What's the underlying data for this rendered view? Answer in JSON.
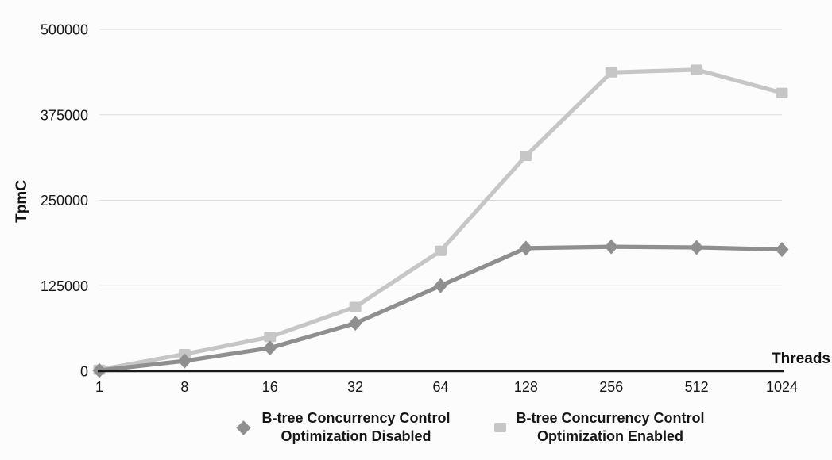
{
  "chart_data": {
    "type": "line",
    "title": "",
    "xlabel": "Threads",
    "ylabel": "TpmC",
    "categories": [
      "1",
      "8",
      "16",
      "32",
      "64",
      "128",
      "256",
      "512",
      "1024"
    ],
    "y_ticks": [
      0,
      125000,
      250000,
      375000,
      500000
    ],
    "ylim": [
      0,
      500000
    ],
    "grid": true,
    "legend_position": "bottom-center",
    "series": [
      {
        "name": "B-tree Concurrency Control Optimization Disabled",
        "name_lines": [
          "B-tree Concurrency Control",
          "Optimization Disabled"
        ],
        "marker": "diamond",
        "color": "#8f8f8f",
        "values": [
          1000,
          15000,
          34000,
          70000,
          125000,
          180000,
          182000,
          181000,
          178000
        ]
      },
      {
        "name": "B-tree Concurrency Control Optimization Enabled",
        "name_lines": [
          "B-tree Concurrency Control",
          "Optimization Enabled"
        ],
        "marker": "square",
        "color": "#c6c6c6",
        "values": [
          2000,
          25000,
          50000,
          94000,
          176000,
          315000,
          437000,
          441000,
          407000
        ]
      }
    ]
  },
  "colors": {
    "background": "#fcfcfc",
    "axis": "#1a1a1a",
    "gridline": "#dcdcdc",
    "text": "#161616"
  }
}
